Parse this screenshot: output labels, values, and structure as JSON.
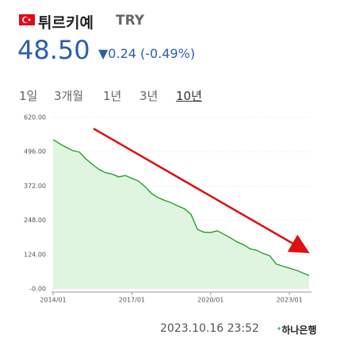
{
  "header": {
    "name": "튀르키예",
    "code": "TRY",
    "price": "48.50",
    "change": "▼0.24 (-0.49%)"
  },
  "tabs": [
    "1일",
    "3개월",
    "1년",
    "3년",
    "10년"
  ],
  "footer": {
    "timestamp": "2023.10.16 23:52",
    "bank": "하나은행"
  },
  "chart_data": {
    "type": "area",
    "x": [
      "2014/01",
      "2014/04",
      "2014/07",
      "2014/10",
      "2015/01",
      "2015/04",
      "2015/07",
      "2015/10",
      "2016/01",
      "2016/04",
      "2016/07",
      "2016/10",
      "2017/01",
      "2017/04",
      "2017/07",
      "2017/10",
      "2018/01",
      "2018/04",
      "2018/07",
      "2018/10",
      "2019/01",
      "2019/04",
      "2019/07",
      "2019/10",
      "2020/01",
      "2020/04",
      "2020/07",
      "2020/10",
      "2021/01",
      "2021/04",
      "2021/07",
      "2021/10",
      "2022/01",
      "2022/04",
      "2022/07",
      "2022/10",
      "2023/01",
      "2023/04",
      "2023/07",
      "2023/10"
    ],
    "series": [
      {
        "color": "#1a9c1a",
        "values": [
          540,
          525,
          512,
          500,
          495,
          470,
          450,
          432,
          420,
          415,
          405,
          410,
          400,
          390,
          370,
          345,
          330,
          320,
          312,
          300,
          290,
          270,
          215,
          205,
          204,
          210,
          198,
          185,
          170,
          160,
          145,
          140,
          128,
          120,
          90,
          82,
          75,
          68,
          58,
          48.5
        ]
      }
    ],
    "ylim": [
      0,
      620
    ],
    "yticks": [
      {
        "value": 0,
        "label": "-0.00"
      },
      {
        "value": 124,
        "label": "124.00"
      },
      {
        "value": 248,
        "label": "248.00"
      },
      {
        "value": 372,
        "label": "372.00"
      },
      {
        "value": 496,
        "label": "496.00"
      },
      {
        "value": 620,
        "label": "620.00"
      }
    ],
    "xticks": [
      "2014/01",
      "2017/01",
      "2020/01",
      "2023/01"
    ],
    "grid": true
  }
}
